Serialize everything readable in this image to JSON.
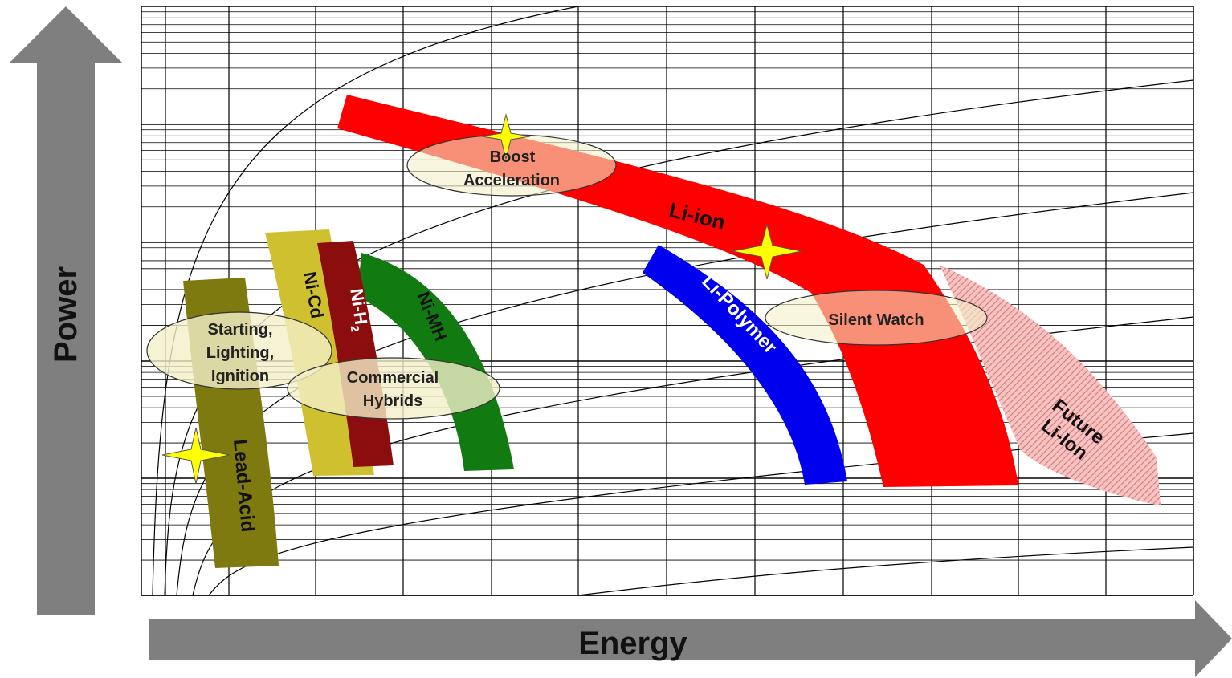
{
  "axes": {
    "x_label": "Energy",
    "y_label": "Power"
  },
  "technologies": [
    {
      "key": "lead_acid",
      "label": "Lead-Acid",
      "color": "#7f7a10"
    },
    {
      "key": "ni_cd",
      "label": "Ni-Cd",
      "color": "#cfc030"
    },
    {
      "key": "ni_h2",
      "label": "Ni-H",
      "subscript": "2",
      "color": "#8c0d0d"
    },
    {
      "key": "ni_mh",
      "label": "Ni-MH",
      "color": "#117a11"
    },
    {
      "key": "li_ion",
      "label": "Li-ion",
      "color": "#ff0000"
    },
    {
      "key": "li_polymer",
      "label": "Li-Polymer",
      "color": "#0000ee"
    },
    {
      "key": "future_li_ion",
      "label_line1": "Future",
      "label_line2": "Li-Ion",
      "color": "#f5b3b3"
    }
  ],
  "applications": [
    {
      "key": "sli",
      "lines": [
        "Starting,",
        "Lighting,",
        "Ignition"
      ]
    },
    {
      "key": "commercial_hybrids",
      "lines": [
        "Commercial",
        "Hybrids"
      ]
    },
    {
      "key": "boost",
      "lines": [
        "Boost",
        "Acceleration"
      ]
    },
    {
      "key": "silent_watch",
      "lines": [
        "Silent Watch"
      ]
    }
  ],
  "colors": {
    "arrow": "#7f7f7f",
    "ellipse_fill": "#f3f0c8",
    "star": "#ffff00",
    "grid": "#000000"
  }
}
